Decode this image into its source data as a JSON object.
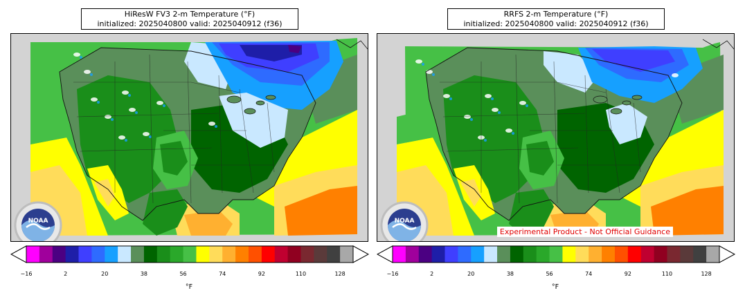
{
  "panels": [
    {
      "title_line1": "HiResW FV3 2-m Temperature (°F)",
      "title_line2": "initialized: 2025040800 valid: 2025040912 (f36)"
    },
    {
      "title_line1": "RRFS 2-m Temperature (°F)",
      "title_line2": "initialized: 2025040800 valid: 2025040912 (f36)",
      "disclaimer": "Experimental Product - Not Official Guidance"
    }
  ],
  "colorbar": {
    "tick_labels": [
      "−16",
      "2",
      "20",
      "38",
      "56",
      "74",
      "92",
      "110",
      "128"
    ],
    "unit_label": "°F",
    "colors": [
      "#ff00ff",
      "#a0009c",
      "#4b0082",
      "#1e1ea8",
      "#3f3fff",
      "#2e6bff",
      "#16a0ff",
      "#c9e8ff",
      "#5a8f5a",
      "#006400",
      "#1a8e1a",
      "#2aa82a",
      "#46c046",
      "#ffff00",
      "#ffdc5a",
      "#ffb030",
      "#ff8000",
      "#ff5000",
      "#ff0000",
      "#c00030",
      "#900020",
      "#7a2830",
      "#5a3a3a",
      "#404040",
      "#a8a8a8"
    ]
  },
  "logo": {
    "text": "NOAA"
  }
}
